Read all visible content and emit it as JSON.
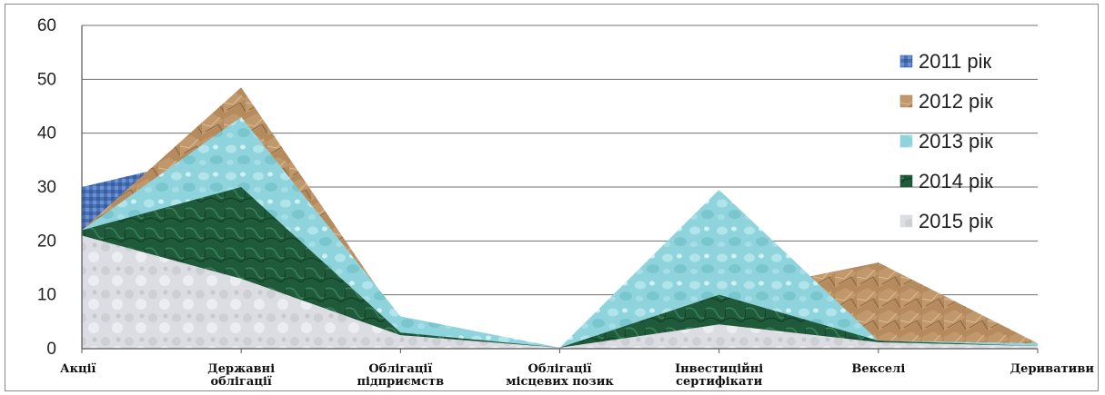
{
  "chart_data": {
    "type": "area",
    "title": "",
    "xlabel": "",
    "ylabel": "",
    "ylim": [
      0,
      60
    ],
    "yticks": [
      "0",
      "10",
      "20",
      "30",
      "40",
      "50",
      "60"
    ],
    "grid": true,
    "legend_placement": "right",
    "categories": [
      [
        "Акції"
      ],
      [
        "Державні",
        "облігації"
      ],
      [
        "Облігації",
        "підприємств"
      ],
      [
        "Облігації",
        "місцевих позик"
      ],
      [
        "Інвестиційні",
        "сертифікати"
      ],
      [
        "Векселі"
      ],
      [
        "Деривативи"
      ]
    ],
    "series": [
      {
        "name": "2011 рік",
        "values": [
          30,
          37,
          0,
          0,
          0,
          0,
          0
        ],
        "color": "#4a72b8"
      },
      {
        "name": "2012 рік",
        "values": [
          22,
          48.5,
          5,
          0.2,
          10,
          16,
          1
        ],
        "color": "#b58a5c"
      },
      {
        "name": "2013 рік",
        "values": [
          22,
          43,
          6,
          0.2,
          29.5,
          1.5,
          1
        ],
        "color": "#8fd4dc"
      },
      {
        "name": "2014 рік",
        "values": [
          22,
          30,
          3,
          0.2,
          10,
          1.5,
          0.5
        ],
        "color": "#1f5a3a"
      },
      {
        "name": "2015 рік",
        "values": [
          21,
          13,
          2.5,
          0.2,
          4.5,
          1.2,
          0.5
        ],
        "color": "#dcdde2"
      }
    ]
  }
}
